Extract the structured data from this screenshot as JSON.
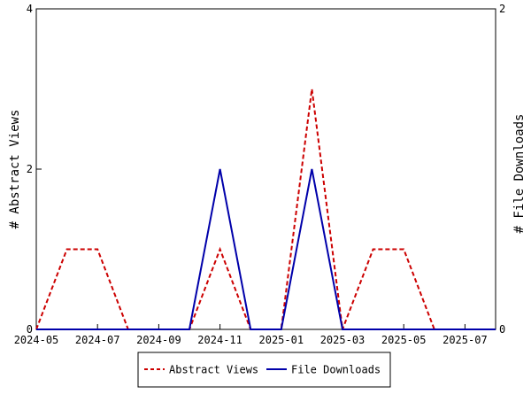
{
  "chart_data": {
    "type": "line",
    "title": "",
    "x": [
      "2024-05",
      "2024-06",
      "2024-07",
      "2024-08",
      "2024-09",
      "2024-10",
      "2024-11",
      "2024-12",
      "2025-01",
      "2025-02",
      "2025-03",
      "2025-04",
      "2025-05",
      "2025-06",
      "2025-07",
      "2025-08"
    ],
    "x_tick_labels": [
      "2024-05",
      "2024-07",
      "2024-09",
      "2024-11",
      "2025-01",
      "2025-03",
      "2025-05",
      "2025-07"
    ],
    "ylabel_left": "# Abstract Views",
    "ylabel_right": "# File Downloads",
    "ylim_left": [
      0,
      4
    ],
    "ylim_right": [
      0,
      2
    ],
    "y_ticks_left": [
      "0",
      "2",
      "4"
    ],
    "y_ticks_right": [
      "0",
      "2"
    ],
    "grid": false,
    "legend_position": "bottom",
    "series": [
      {
        "name": "Abstract Views",
        "axis": "left",
        "color": "#cc0000",
        "style": "dashed",
        "values": [
          0,
          1,
          1,
          0,
          0,
          0,
          1,
          0,
          0,
          3,
          0,
          1,
          1,
          0,
          0,
          0
        ]
      },
      {
        "name": "File Downloads",
        "axis": "right",
        "color": "#0000aa",
        "style": "solid",
        "values": [
          0,
          0,
          0,
          0,
          0,
          0,
          1,
          0,
          0,
          1,
          0,
          0,
          0,
          0,
          0,
          0
        ]
      }
    ]
  }
}
